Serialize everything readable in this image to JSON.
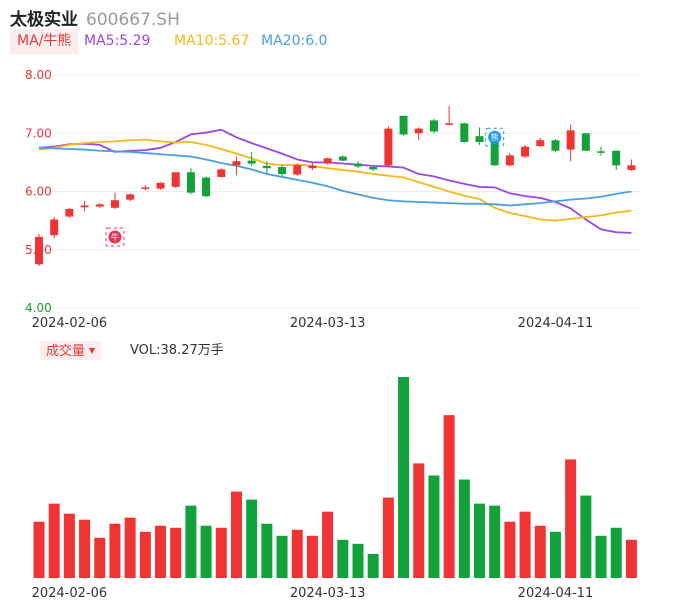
{
  "header": {
    "name": "太极实业",
    "code": "600667.SH"
  },
  "ma_legend": {
    "button_label": "MA/牛熊",
    "items": [
      {
        "label": "MA5:5.29",
        "color": "#9b45e4"
      },
      {
        "label": "MA10:5.67",
        "color": "#f6b81a"
      },
      {
        "label": "MA20:6.0",
        "color": "#4a9ee6"
      }
    ]
  },
  "volume_legend": {
    "button_label": "成交量",
    "vol_text": "VOL:38.27万手"
  },
  "colors": {
    "up": "#f03333",
    "down": "#12a23a"
  },
  "markers": [
    {
      "index": 5,
      "label": "牛",
      "color": "#e8325a"
    },
    {
      "index": 30,
      "label": "熊",
      "color": "#1e9be8"
    }
  ],
  "chart_data": {
    "type": "candlestick",
    "y_axis": {
      "min": 4.0,
      "max": 8.0,
      "ticks": [
        "8.00",
        "7.00",
        "6.00",
        "5.00",
        "4.00"
      ]
    },
    "x_axis_labels": [
      {
        "index": 2,
        "label": "2024-02-06"
      },
      {
        "index": 19,
        "label": "2024-03-13"
      },
      {
        "index": 34,
        "label": "2024-04-11"
      }
    ],
    "ohlc": [
      [
        4.75,
        5.22,
        4.72,
        5.27
      ],
      [
        5.25,
        5.52,
        5.2,
        5.56
      ],
      [
        5.57,
        5.7,
        5.55,
        5.72
      ],
      [
        5.73,
        5.76,
        5.66,
        5.84
      ],
      [
        5.74,
        5.78,
        5.72,
        5.8
      ],
      [
        5.72,
        5.85,
        5.7,
        5.98
      ],
      [
        5.86,
        5.95,
        5.83,
        5.97
      ],
      [
        6.07,
        6.07,
        6.02,
        6.11
      ],
      [
        6.05,
        6.15,
        6.03,
        6.16
      ],
      [
        6.08,
        6.33,
        6.06,
        6.33
      ],
      [
        6.33,
        5.98,
        5.95,
        6.4
      ],
      [
        6.24,
        5.92,
        5.9,
        6.26
      ],
      [
        6.25,
        6.38,
        6.24,
        6.4
      ],
      [
        6.45,
        6.52,
        6.28,
        6.6
      ],
      [
        6.53,
        6.48,
        6.44,
        6.68
      ],
      [
        6.44,
        6.4,
        6.3,
        6.52
      ],
      [
        6.42,
        6.3,
        6.26,
        6.46
      ],
      [
        6.29,
        6.45,
        6.27,
        6.48
      ],
      [
        6.4,
        6.44,
        6.37,
        6.5
      ],
      [
        6.48,
        6.57,
        6.46,
        6.58
      ],
      [
        6.6,
        6.53,
        6.52,
        6.62
      ],
      [
        6.48,
        6.43,
        6.4,
        6.52
      ],
      [
        6.42,
        6.38,
        6.35,
        6.45
      ],
      [
        6.45,
        7.08,
        6.42,
        7.12
      ],
      [
        7.3,
        6.98,
        6.96,
        7.3
      ],
      [
        7.0,
        7.08,
        6.88,
        7.1
      ],
      [
        7.22,
        7.03,
        7.0,
        7.25
      ],
      [
        7.15,
        7.17,
        7.15,
        7.47
      ],
      [
        7.17,
        6.85,
        6.84,
        7.18
      ],
      [
        6.95,
        6.85,
        6.8,
        7.1
      ],
      [
        6.87,
        6.45,
        6.44,
        6.88
      ],
      [
        6.45,
        6.62,
        6.43,
        6.66
      ],
      [
        6.6,
        6.77,
        6.58,
        6.8
      ],
      [
        6.78,
        6.88,
        6.76,
        6.92
      ],
      [
        6.88,
        6.7,
        6.68,
        6.9
      ],
      [
        6.72,
        7.05,
        6.52,
        7.15
      ],
      [
        7.0,
        6.7,
        6.7,
        7.0
      ],
      [
        6.69,
        6.67,
        6.62,
        6.77
      ],
      [
        6.7,
        6.45,
        6.37,
        6.7
      ],
      [
        6.37,
        6.45,
        6.35,
        6.55
      ]
    ],
    "ma5": [
      6.75,
      6.77,
      6.81,
      6.82,
      6.8,
      6.68,
      6.7,
      6.71,
      6.75,
      6.85,
      6.98,
      7.01,
      7.06,
      6.93,
      6.83,
      6.74,
      6.65,
      6.55,
      6.5,
      6.5,
      6.48,
      6.46,
      6.44,
      6.43,
      6.41,
      6.3,
      6.26,
      6.19,
      6.13,
      6.08,
      6.07,
      5.97,
      5.92,
      5.89,
      5.82,
      5.71,
      5.52,
      5.35,
      5.3,
      5.29
    ],
    "ma10": [
      6.72,
      6.75,
      6.8,
      6.83,
      6.85,
      6.86,
      6.88,
      6.89,
      6.86,
      6.84,
      6.85,
      6.8,
      6.73,
      6.65,
      6.57,
      6.48,
      6.45,
      6.46,
      6.44,
      6.4,
      6.37,
      6.34,
      6.3,
      6.27,
      6.24,
      6.16,
      6.08,
      6.0,
      5.93,
      5.87,
      5.72,
      5.63,
      5.58,
      5.52,
      5.5,
      5.53,
      5.56,
      5.59,
      5.64,
      5.67
    ],
    "ma20": [
      6.75,
      6.74,
      6.73,
      6.72,
      6.7,
      6.69,
      6.68,
      6.66,
      6.64,
      6.62,
      6.6,
      6.55,
      6.49,
      6.44,
      6.38,
      6.3,
      6.25,
      6.2,
      6.15,
      6.09,
      6.01,
      5.95,
      5.89,
      5.85,
      5.83,
      5.82,
      5.81,
      5.8,
      5.79,
      5.79,
      5.78,
      5.76,
      5.78,
      5.8,
      5.83,
      5.86,
      5.88,
      5.91,
      5.96,
      6.0
    ],
    "volume_heights": [
      0.28,
      0.37,
      0.32,
      0.29,
      0.2,
      0.27,
      0.3,
      0.23,
      0.26,
      0.25,
      0.36,
      0.26,
      0.25,
      0.43,
      0.39,
      0.27,
      0.21,
      0.24,
      0.21,
      0.33,
      0.19,
      0.17,
      0.12,
      0.4,
      1.0,
      0.57,
      0.51,
      0.81,
      0.49,
      0.37,
      0.36,
      0.28,
      0.33,
      0.26,
      0.23,
      0.59,
      0.41,
      0.21,
      0.25,
      0.19
    ]
  }
}
